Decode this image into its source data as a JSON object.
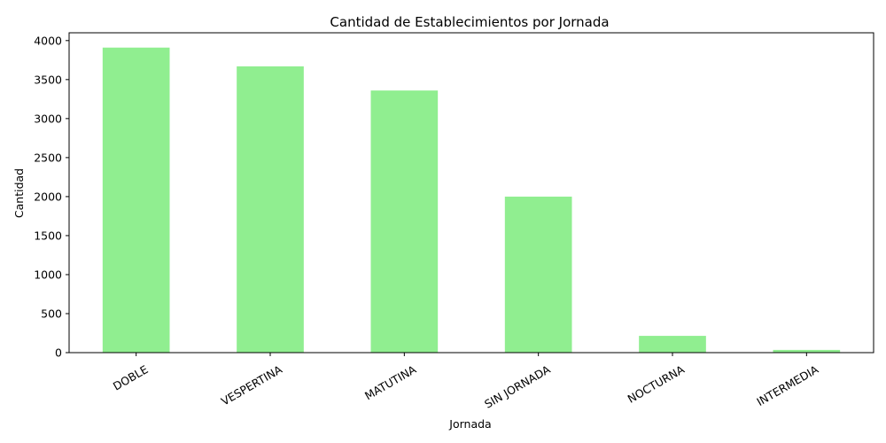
{
  "chart_data": {
    "type": "bar",
    "title": "Cantidad de Establecimientos por Jornada",
    "xlabel": "Jornada",
    "ylabel": "Cantidad",
    "categories": [
      "DOBLE",
      "VESPERTINA",
      "MATUTINA",
      "SIN JORNADA",
      "NOCTURNA",
      "INTERMEDIA"
    ],
    "values": [
      3910,
      3670,
      3360,
      2000,
      215,
      35
    ],
    "ylim": [
      0,
      4100
    ],
    "yticks": [
      0,
      500,
      1000,
      1500,
      2000,
      2500,
      3000,
      3500,
      4000
    ],
    "bar_color": "#90ee90",
    "grid": false,
    "xtick_rotation": 30
  }
}
